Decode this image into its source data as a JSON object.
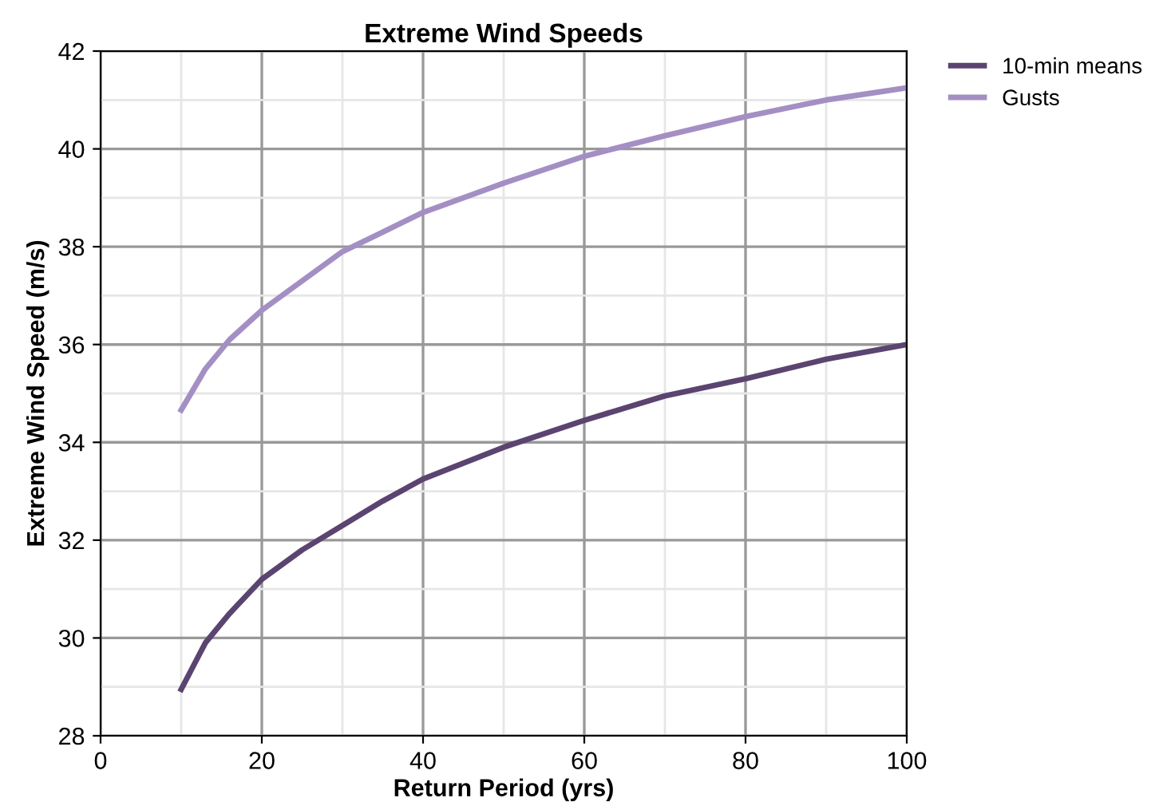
{
  "chart_data": {
    "type": "line",
    "title": "Extreme Wind Speeds",
    "xlabel": "Return Period (yrs)",
    "ylabel": "Extreme Wind Speed (m/s)",
    "xlim": [
      0,
      100
    ],
    "xticks": [
      0,
      20,
      40,
      60,
      80,
      100
    ],
    "ylim": [
      28,
      42
    ],
    "yticks": [
      28,
      30,
      32,
      34,
      36,
      38,
      40,
      42
    ],
    "grid": true,
    "legend": "top right",
    "marker": "none",
    "line_style": "solid",
    "series": [
      {
        "name": "10-min means",
        "color": "#5b4470",
        "x": [
          10,
          13,
          16,
          20,
          25,
          30,
          35,
          40,
          50,
          60,
          70,
          80,
          90,
          100
        ],
        "values": [
          28.95,
          29.9,
          30.5,
          31.2,
          31.8,
          32.3,
          32.8,
          33.25,
          33.9,
          34.45,
          34.95,
          35.3,
          35.7,
          36.0
        ]
      },
      {
        "name": "Gusts",
        "color": "#a48fc4",
        "x": [
          10,
          13,
          16,
          20,
          25,
          30,
          35,
          40,
          50,
          60,
          70,
          80,
          90,
          100
        ],
        "values": [
          34.66,
          35.5,
          36.1,
          36.7,
          37.3,
          37.9,
          38.3,
          38.7,
          39.3,
          39.85,
          40.27,
          40.66,
          41.0,
          41.25
        ]
      }
    ]
  }
}
